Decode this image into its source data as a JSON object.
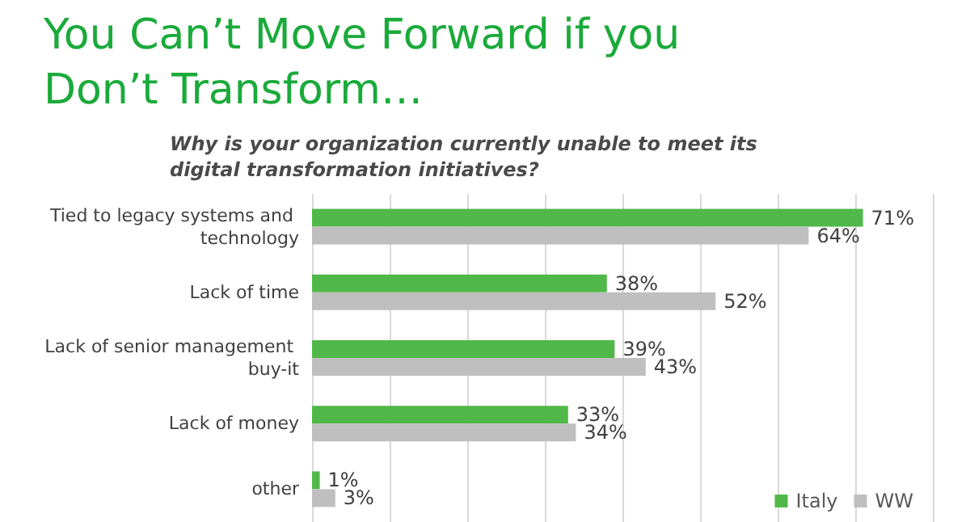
{
  "chart_data": {
    "type": "bar",
    "orientation": "horizontal",
    "title": "You Can’t Move Forward if you Don’t Transform…",
    "subtitle": "Why is your organization currently unable to meet its digital transformation initiatives?",
    "categories": [
      "Tied to legacy systems and technology",
      "Lack of time",
      "Lack of senior management buy-it",
      "Lack of money",
      "other"
    ],
    "series": [
      {
        "name": "Italy",
        "color": "#50b848",
        "values": [
          71,
          38,
          39,
          33,
          1
        ],
        "value_labels": [
          "71%",
          "38%",
          "39%",
          "33%",
          "1%"
        ]
      },
      {
        "name": "WW",
        "color": "#bfbfbf",
        "values": [
          64,
          52,
          43,
          34,
          3
        ],
        "value_labels": [
          "64%",
          "52%",
          "43%",
          "34%",
          "3%"
        ]
      }
    ],
    "grid": "x",
    "tick_labels": "y",
    "legend": "bottom right"
  }
}
